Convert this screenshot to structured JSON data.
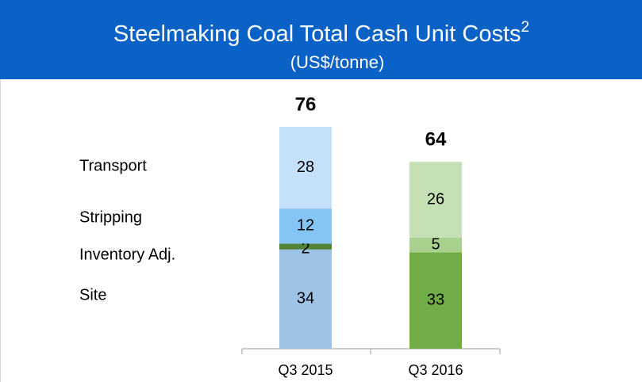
{
  "chart_data": {
    "type": "stacked_bar",
    "title": "Steelmaking Coal Total Cash Unit Costs",
    "title_superscript": "2",
    "subtitle": "(US$/tonne)",
    "categories": [
      "Q3 2015",
      "Q3 2016"
    ],
    "series": [
      {
        "name": "Site",
        "colors": [
          "#9dc3e6",
          "#70ad47"
        ],
        "values": [
          34,
          33
        ]
      },
      {
        "name": "Inventory Adj.",
        "colors": [
          "#548235",
          "#548235"
        ],
        "values": [
          2,
          null
        ]
      },
      {
        "name": "Stripping",
        "colors": [
          "#85c5f6",
          "#a9d18e"
        ],
        "values": [
          12,
          5
        ]
      },
      {
        "name": "Transport",
        "colors": [
          "#c6e1fb",
          "#c5e0b4"
        ],
        "values": [
          28,
          26
        ]
      }
    ],
    "totals": [
      76,
      64
    ]
  }
}
